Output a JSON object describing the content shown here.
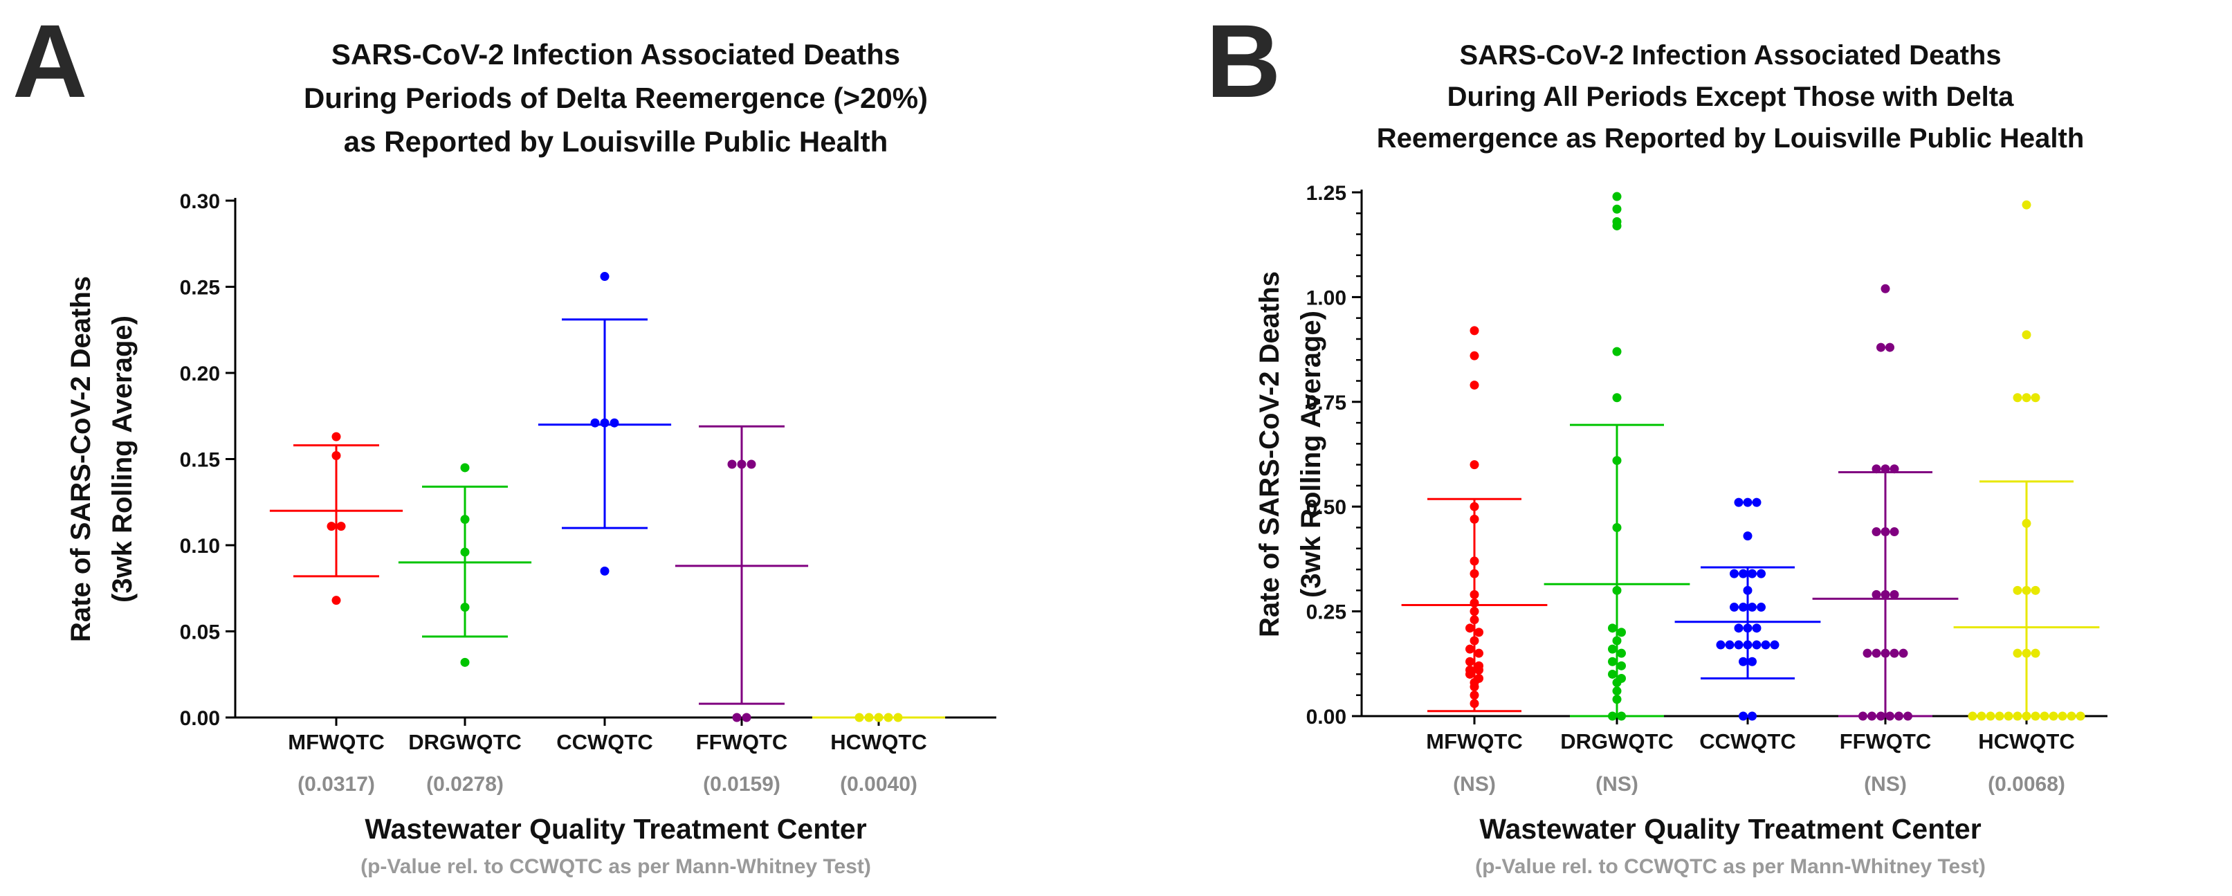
{
  "chart_data": [
    {
      "type": "scatter",
      "panel_label": "A",
      "title": [
        "SARS-CoV-2 Infection Associated Deaths",
        "During Periods of Delta Reemergence (>20%)",
        "as Reported by Louisville Public Health"
      ],
      "ylabel": [
        "Rate of SARS-CoV-2 Deaths",
        "(3wk Rolling Average)"
      ],
      "xlabel": "Wastewater Quality Treatment Center",
      "xlabel_note": "(p-Value rel. to CCWQTC as per Mann-Whitney Test)",
      "ylim": [
        0,
        0.3
      ],
      "yticks": [
        0.0,
        0.05,
        0.1,
        0.15,
        0.2,
        0.25,
        0.3
      ],
      "ytick_labels": [
        "0.00",
        "0.05",
        "0.10",
        "0.15",
        "0.20",
        "0.25",
        "0.30"
      ],
      "minor_ticks": false,
      "groups": [
        {
          "name": "MFWQTC",
          "color": "#ff0000",
          "pvalue": "(0.0317)",
          "mean": 0.12,
          "upper": 0.158,
          "lower": 0.082,
          "points": [
            0.163,
            0.152,
            0.111,
            0.111,
            0.068
          ]
        },
        {
          "name": "DRGWQTC",
          "color": "#00c400",
          "pvalue": "(0.0278)",
          "mean": 0.09,
          "upper": 0.134,
          "lower": 0.047,
          "points": [
            0.145,
            0.115,
            0.096,
            0.064,
            0.032
          ]
        },
        {
          "name": "CCWQTC",
          "color": "#0000ff",
          "pvalue": "",
          "mean": 0.17,
          "upper": 0.231,
          "lower": 0.11,
          "points": [
            0.256,
            0.171,
            0.171,
            0.171,
            0.085
          ]
        },
        {
          "name": "FFWQTC",
          "color": "#800080",
          "pvalue": "(0.0159)",
          "mean": 0.088,
          "upper": 0.169,
          "lower": 0.008,
          "points": [
            0.147,
            0.147,
            0.147,
            0.0,
            0.0
          ]
        },
        {
          "name": "HCWQTC",
          "color": "#e8e800",
          "pvalue": "(0.0040)",
          "mean": 0.0,
          "upper": 0.0,
          "lower": 0.0,
          "points": [
            0.0,
            0.0,
            0.0,
            0.0,
            0.0
          ]
        }
      ]
    },
    {
      "type": "scatter",
      "panel_label": "B",
      "title": [
        "SARS-CoV-2 Infection Associated Deaths",
        "During All Periods Except Those with Delta",
        "Reemergence as Reported by Louisville Public Health"
      ],
      "ylabel": [
        "Rate of SARS-CoV-2 Deaths",
        "(3wk Rolling Average)"
      ],
      "xlabel": "Wastewater Quality Treatment Center",
      "xlabel_note": "(p-Value rel. to CCWQTC as per Mann-Whitney Test)",
      "ylim": [
        0,
        1.25
      ],
      "yticks": [
        0.0,
        0.25,
        0.5,
        0.75,
        1.0,
        1.25
      ],
      "ytick_labels": [
        "0.00",
        "0.25",
        "0.50",
        "0.75",
        "1.00",
        "1.25"
      ],
      "minor_ticks": true,
      "groups": [
        {
          "name": "MFWQTC",
          "color": "#ff0000",
          "pvalue": "(NS)",
          "mean": 0.265,
          "upper": 0.518,
          "lower": 0.012,
          "points": [
            0.92,
            0.86,
            0.79,
            0.6,
            0.5,
            0.47,
            0.37,
            0.34,
            0.29,
            0.27,
            0.25,
            0.23,
            0.21,
            0.2,
            0.18,
            0.16,
            0.15,
            0.13,
            0.12,
            0.11,
            0.11,
            0.1,
            0.09,
            0.08,
            0.07,
            0.05,
            0.03
          ]
        },
        {
          "name": "DRGWQTC",
          "color": "#00c400",
          "pvalue": "(NS)",
          "mean": 0.315,
          "upper": 0.695,
          "lower": 0.0,
          "points": [
            1.24,
            1.21,
            1.18,
            1.17,
            0.87,
            0.76,
            0.61,
            0.45,
            0.3,
            0.21,
            0.2,
            0.18,
            0.16,
            0.15,
            0.13,
            0.12,
            0.1,
            0.09,
            0.08,
            0.06,
            0.04,
            0.0,
            0.0
          ]
        },
        {
          "name": "CCWQTC",
          "color": "#0000ff",
          "pvalue": "",
          "mean": 0.225,
          "upper": 0.355,
          "lower": 0.09,
          "points": [
            0.51,
            0.51,
            0.51,
            0.43,
            0.34,
            0.34,
            0.34,
            0.34,
            0.3,
            0.26,
            0.26,
            0.26,
            0.26,
            0.21,
            0.21,
            0.21,
            0.17,
            0.17,
            0.17,
            0.17,
            0.17,
            0.17,
            0.17,
            0.13,
            0.13,
            0.0,
            0.0
          ]
        },
        {
          "name": "FFWQTC",
          "color": "#800080",
          "pvalue": "(NS)",
          "mean": 0.28,
          "upper": 0.582,
          "lower": 0.0,
          "points": [
            1.02,
            0.88,
            0.88,
            0.59,
            0.59,
            0.59,
            0.44,
            0.44,
            0.44,
            0.29,
            0.29,
            0.29,
            0.15,
            0.15,
            0.15,
            0.15,
            0.15,
            0.0,
            0.0,
            0.0,
            0.0,
            0.0,
            0.0
          ]
        },
        {
          "name": "HCWQTC",
          "color": "#e8e800",
          "pvalue": "(0.0068)",
          "mean": 0.212,
          "upper": 0.56,
          "lower": 0.0,
          "points": [
            1.22,
            0.91,
            0.76,
            0.76,
            0.76,
            0.46,
            0.3,
            0.3,
            0.3,
            0.15,
            0.15,
            0.15,
            0.0,
            0.0,
            0.0,
            0.0,
            0.0,
            0.0,
            0.0,
            0.0,
            0.0,
            0.0,
            0.0,
            0.0,
            0.0
          ]
        }
      ]
    }
  ]
}
